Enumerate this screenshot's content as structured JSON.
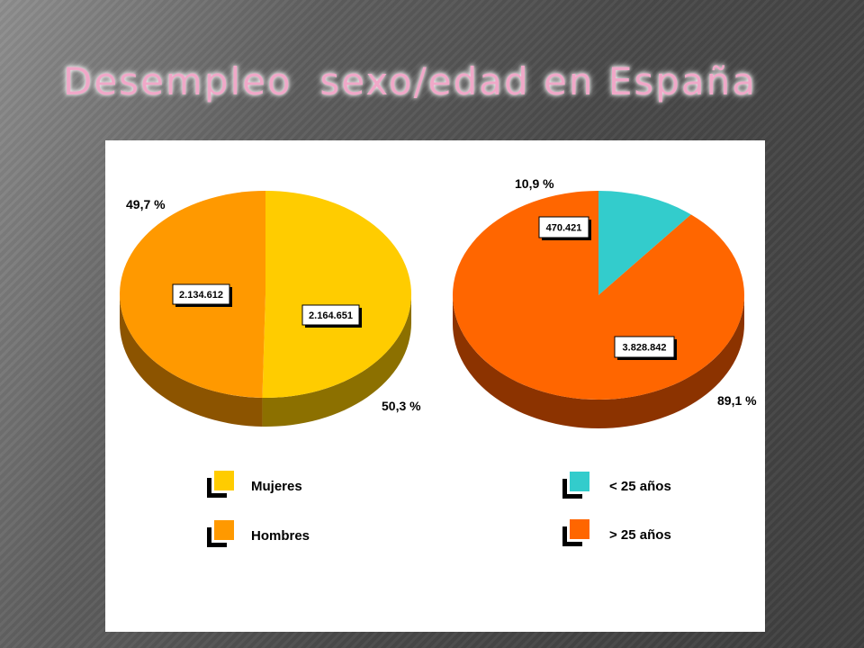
{
  "slide": {
    "title": "Desempleo  sexo/edad en España"
  },
  "chart_data": [
    {
      "type": "pie",
      "slices": [
        {
          "label": "Mujeres",
          "value": 2164651,
          "value_label": "2.164.651",
          "percent": 50.3,
          "percent_label": "50,3 %",
          "color": "#FFCC00",
          "side_color": "#8C7000"
        },
        {
          "label": "Hombres",
          "value": 2134612,
          "value_label": "2.134.612",
          "percent": 49.7,
          "percent_label": "49,7 %",
          "color": "#FF9900",
          "side_color": "#8C5400"
        }
      ],
      "legend": [
        "Mujeres",
        "Hombres"
      ],
      "legend_position": "bottom-left"
    },
    {
      "type": "pie",
      "slices": [
        {
          "label": "< 25 años",
          "value": 470421,
          "value_label": "470.421",
          "percent": 10.9,
          "percent_label": "10,9 %",
          "color": "#33CCCC",
          "side_color": "#1C7070"
        },
        {
          "label": "> 25 años",
          "value": 3828842,
          "value_label": "3.828.842",
          "percent": 89.1,
          "percent_label": "89,1 %",
          "color": "#FF6600",
          "side_color": "#8C3300"
        }
      ],
      "legend": [
        "< 25 años",
        "> 25 años"
      ],
      "legend_position": "bottom-right"
    }
  ]
}
